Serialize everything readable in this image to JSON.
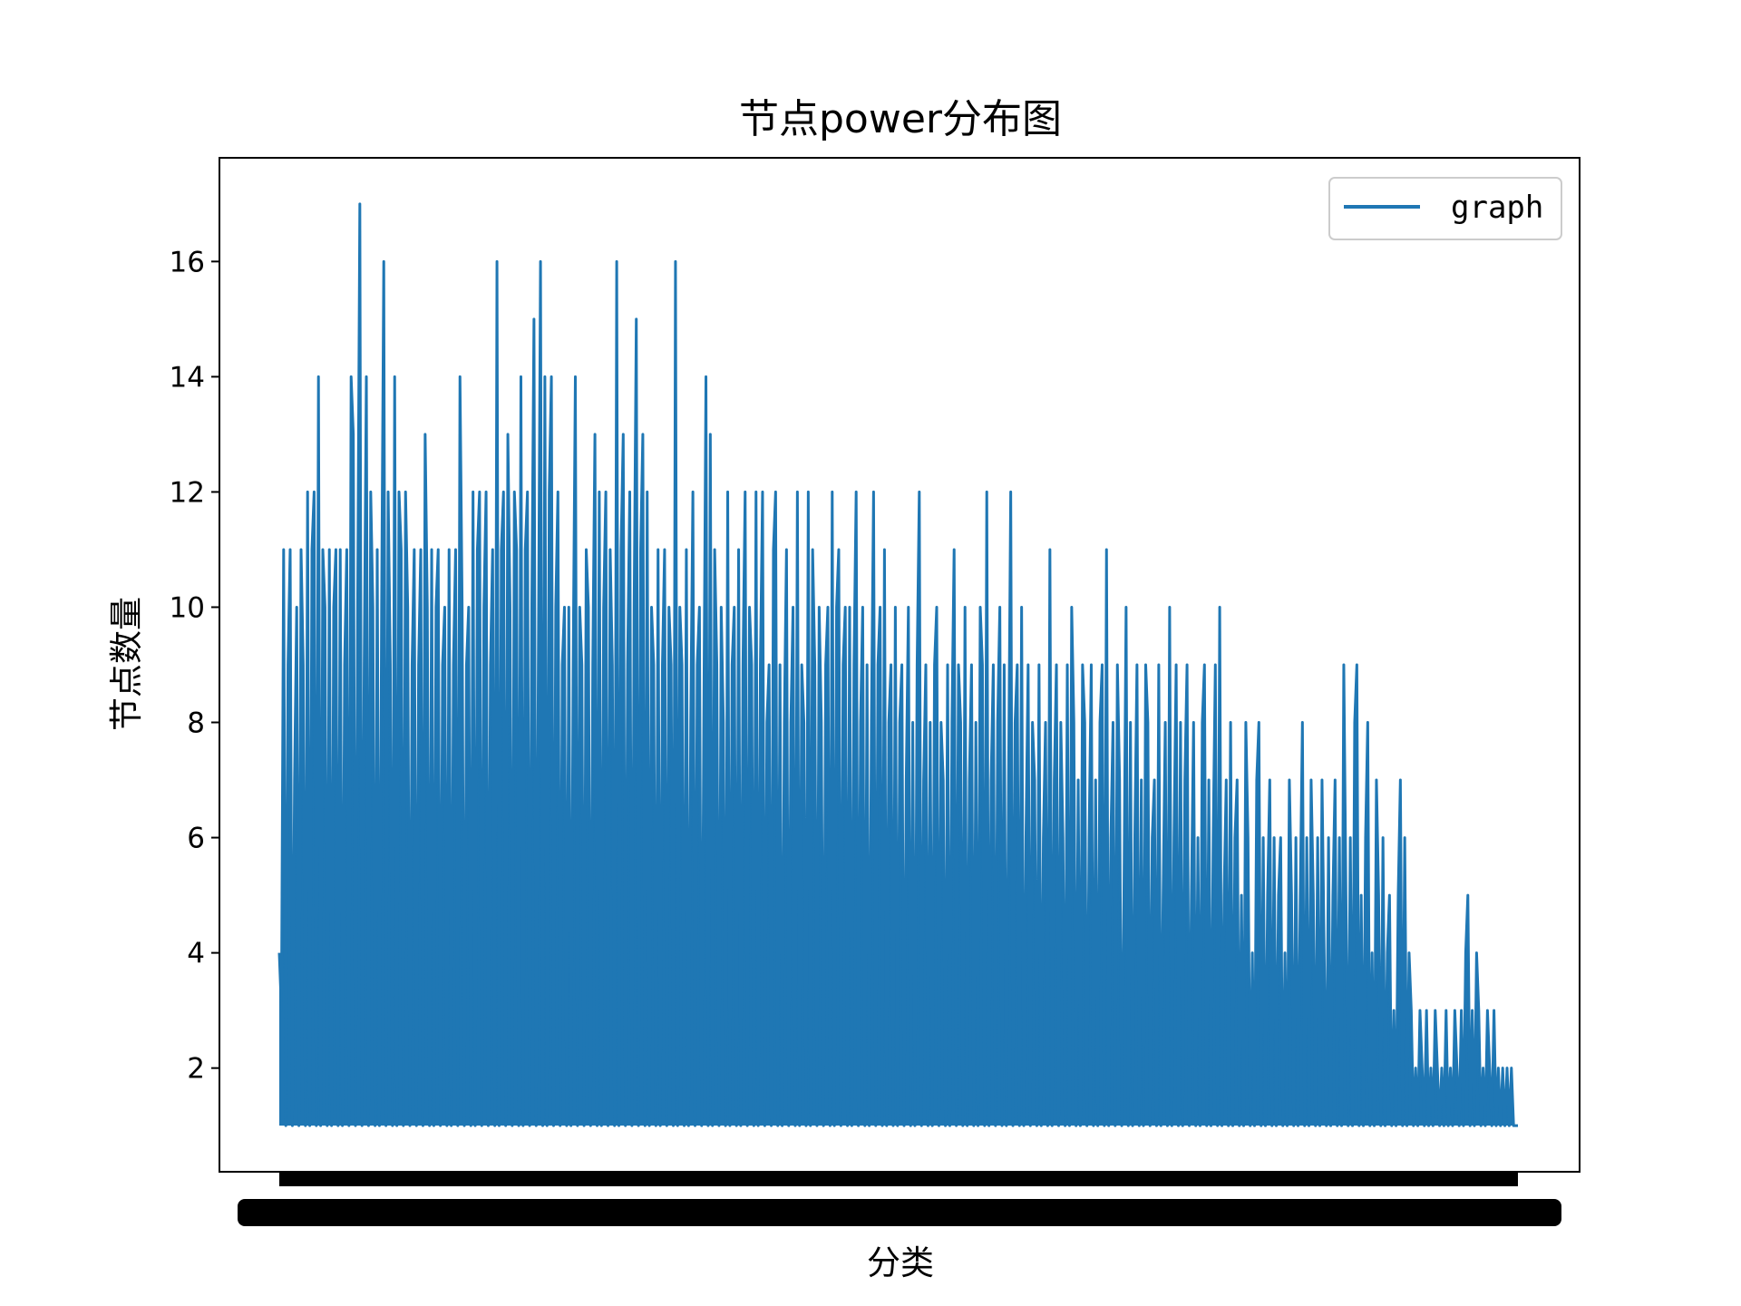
{
  "chart_data": {
    "type": "line",
    "title": "节点power分布图",
    "xlabel": "分类",
    "ylabel": "节点数量",
    "ylim": [
      0.2,
      17.8
    ],
    "yticks": [
      2,
      4,
      6,
      8,
      10,
      12,
      14,
      16
    ],
    "grid": false,
    "legend_position": "top-right",
    "series": [
      {
        "name": "graph",
        "color": "#1f77b4",
        "values": [
          4,
          3,
          11,
          1,
          9,
          11,
          1,
          7,
          10,
          1,
          11,
          9,
          1,
          12,
          1,
          11,
          12,
          1,
          14,
          1,
          11,
          10,
          1,
          11,
          1,
          10,
          11,
          1,
          11,
          1,
          9,
          11,
          1,
          14,
          13,
          1,
          10,
          17,
          1,
          9,
          14,
          1,
          12,
          10,
          1,
          11,
          1,
          10,
          16,
          1,
          12,
          9,
          1,
          14,
          1,
          12,
          11,
          1,
          12,
          10,
          1,
          9,
          11,
          1,
          9,
          11,
          1,
          13,
          10,
          1,
          11,
          1,
          10,
          11,
          1,
          9,
          10,
          1,
          11,
          1,
          9,
          11,
          1,
          14,
          10,
          1,
          9,
          10,
          1,
          12,
          1,
          11,
          12,
          1,
          10,
          12,
          1,
          9,
          11,
          1,
          16,
          1,
          11,
          12,
          1,
          13,
          10,
          1,
          12,
          11,
          1,
          14,
          1,
          11,
          12,
          1,
          10,
          15,
          1,
          9,
          16,
          1,
          14,
          1,
          12,
          14,
          1,
          10,
          12,
          1,
          9,
          10,
          1,
          10,
          1,
          9,
          14,
          1,
          10,
          9,
          1,
          11,
          10,
          1,
          9,
          13,
          1,
          12,
          1,
          10,
          12,
          1,
          11,
          9,
          1,
          16,
          1,
          11,
          13,
          1,
          9,
          12,
          1,
          10,
          15,
          1,
          11,
          13,
          1,
          12,
          1,
          10,
          9,
          1,
          11,
          1,
          9,
          11,
          1,
          10,
          9,
          1,
          16,
          1,
          10,
          9,
          1,
          11,
          1,
          8,
          12,
          1,
          9,
          10,
          1,
          8,
          14,
          1,
          13,
          1,
          11,
          9,
          1,
          10,
          8,
          1,
          12,
          1,
          9,
          10,
          1,
          11,
          1,
          9,
          12,
          1,
          10,
          9,
          1,
          12,
          1,
          9,
          12,
          1,
          8,
          9,
          1,
          11,
          12,
          1,
          9,
          1,
          8,
          11,
          1,
          8,
          10,
          1,
          12,
          1,
          9,
          8,
          1,
          12,
          1,
          11,
          9,
          1,
          10,
          8,
          1,
          9,
          10,
          1,
          12,
          1,
          10,
          11,
          1,
          9,
          10,
          1,
          10,
          1,
          9,
          12,
          1,
          8,
          10,
          1,
          9,
          1,
          8,
          12,
          1,
          9,
          10,
          1,
          11,
          1,
          8,
          9,
          1,
          10,
          1,
          8,
          9,
          1,
          7,
          10,
          1,
          8,
          1,
          9,
          12,
          1,
          7,
          9,
          1,
          8,
          1,
          9,
          10,
          1,
          8,
          7,
          1,
          9,
          1,
          8,
          11,
          1,
          9,
          8,
          1,
          10,
          1,
          7,
          9,
          1,
          8,
          1,
          10,
          9,
          1,
          12,
          1,
          7,
          9,
          1,
          8,
          10,
          1,
          9,
          1,
          7,
          12,
          1,
          8,
          9,
          1,
          10,
          1,
          6,
          9,
          1,
          8,
          7,
          1,
          9,
          1,
          6,
          8,
          1,
          11,
          1,
          7,
          9,
          1,
          8,
          6,
          1,
          9,
          1,
          10,
          8,
          1,
          7,
          1,
          9,
          8,
          1,
          6,
          9,
          1,
          7,
          1,
          8,
          9,
          1,
          11,
          1,
          6,
          8,
          1,
          9,
          7,
          1,
          5,
          10,
          1,
          8,
          1,
          6,
          9,
          1,
          7,
          1,
          9,
          8,
          1,
          6,
          7,
          1,
          9,
          1,
          5,
          8,
          1,
          10,
          1,
          6,
          9,
          1,
          8,
          1,
          7,
          9,
          1,
          5,
          8,
          1,
          6,
          1,
          8,
          9,
          1,
          7,
          1,
          6,
          9,
          1,
          10,
          1,
          5,
          7,
          1,
          8,
          1,
          6,
          7,
          1,
          5,
          1,
          8,
          6,
          1,
          4,
          1,
          7,
          8,
          1,
          6,
          1,
          5,
          7,
          1,
          6,
          1,
          5,
          6,
          1,
          4,
          1,
          7,
          5,
          1,
          6,
          1,
          5,
          8,
          1,
          6,
          1,
          7,
          5,
          1,
          6,
          1,
          7,
          4,
          1,
          6,
          1,
          5,
          7,
          1,
          6,
          1,
          9,
          5,
          1,
          6,
          1,
          8,
          9,
          1,
          5,
          1,
          6,
          8,
          1,
          4,
          1,
          7,
          5,
          1,
          6,
          1,
          4,
          5,
          1,
          3,
          1,
          5,
          7,
          1,
          6,
          1,
          4,
          3,
          1,
          2,
          1,
          3,
          2,
          1,
          3,
          1,
          2,
          1,
          3,
          2,
          1,
          2,
          1,
          3,
          1,
          2,
          1,
          3,
          2,
          1,
          3,
          1,
          4,
          5,
          1,
          3,
          1,
          4,
          3,
          1,
          2,
          1,
          3,
          2,
          1,
          3,
          1,
          2,
          1,
          2,
          1,
          2,
          1,
          2,
          1,
          1,
          1
        ]
      }
    ]
  }
}
